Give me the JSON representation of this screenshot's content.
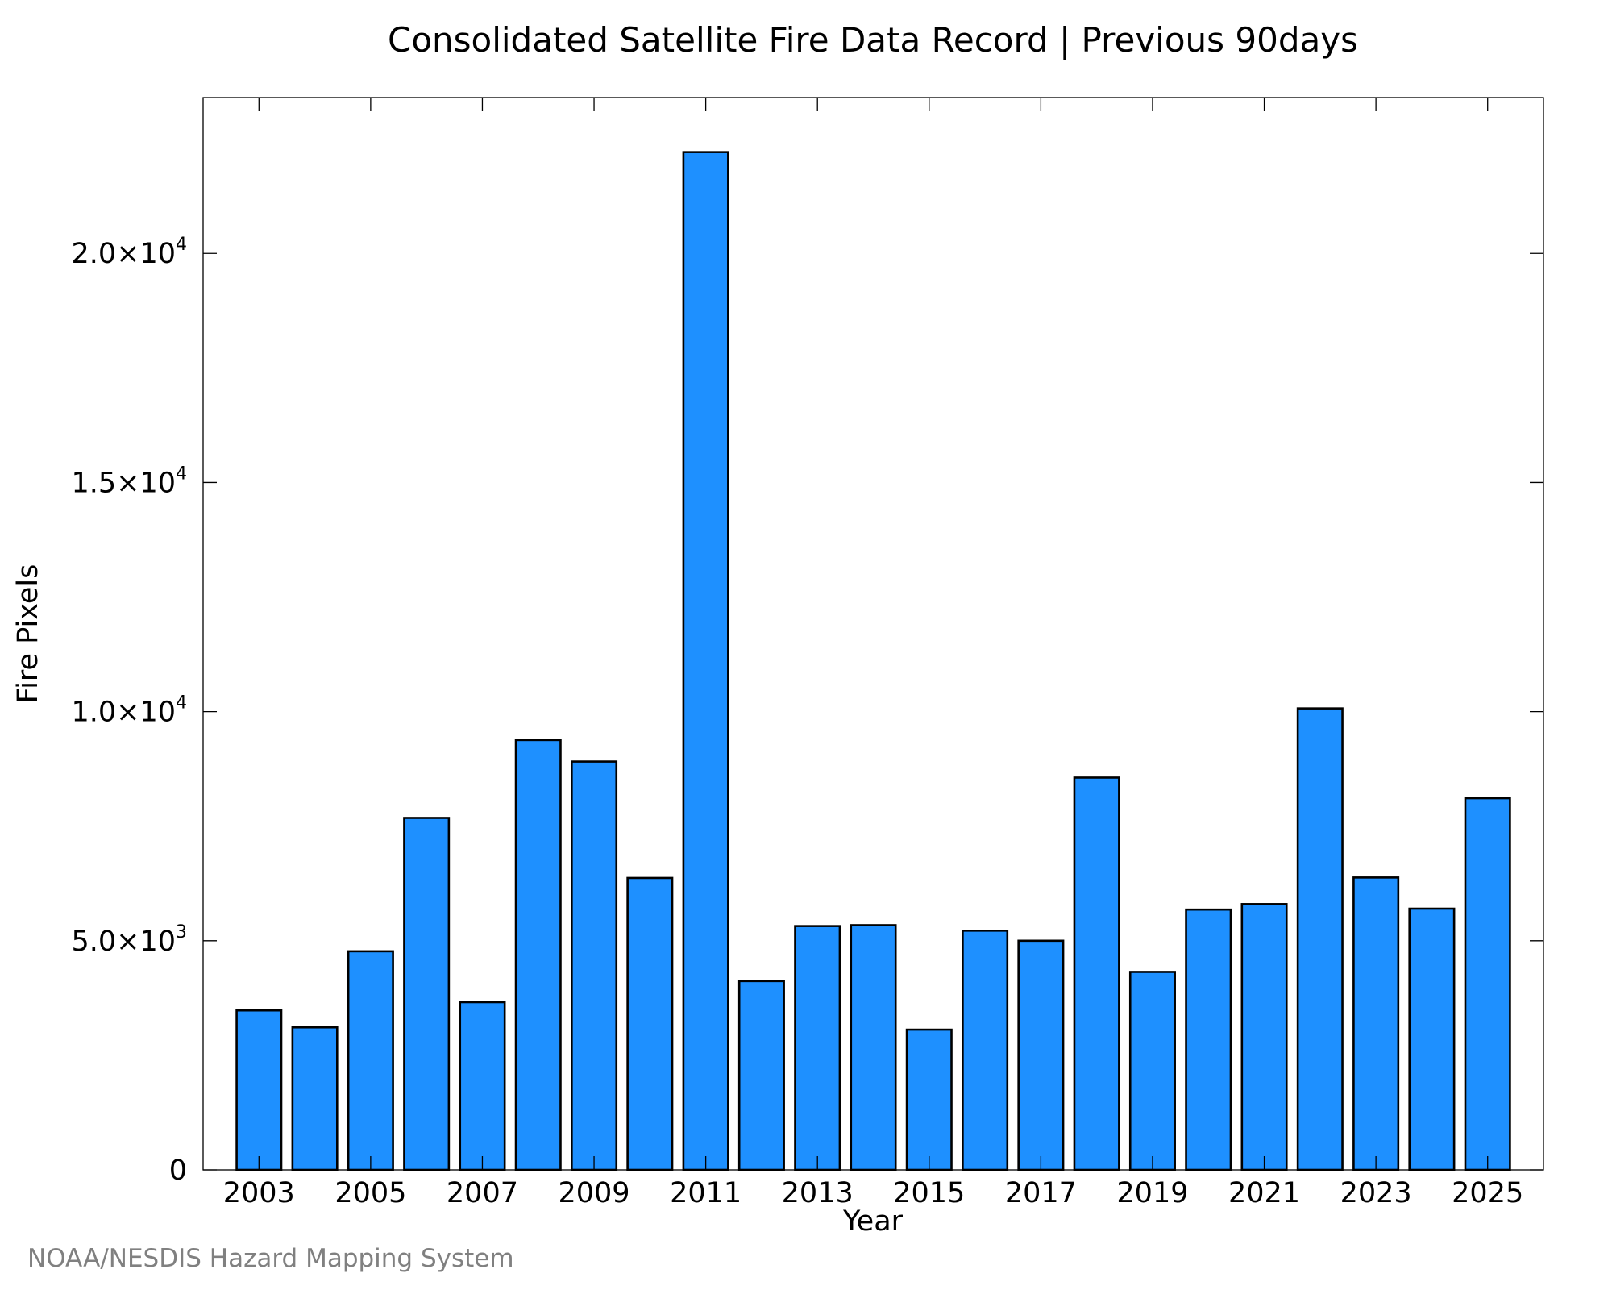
{
  "chart_data": {
    "type": "bar",
    "title": "Consolidated Satellite Fire Data Record | Previous 90days",
    "xlabel": "Year",
    "ylabel": "Fire Pixels",
    "credit": "NOAA/NESDIS Hazard Mapping System",
    "categories": [
      2003,
      2004,
      2005,
      2006,
      2007,
      2008,
      2009,
      2010,
      2011,
      2012,
      2013,
      2014,
      2015,
      2016,
      2017,
      2018,
      2019,
      2020,
      2021,
      2022,
      2023,
      2024,
      2025
    ],
    "values": [
      3480,
      3110,
      4770,
      7680,
      3660,
      9380,
      8910,
      6370,
      22210,
      4120,
      5320,
      5340,
      3060,
      5220,
      5000,
      8560,
      4320,
      5680,
      5800,
      10070,
      6380,
      5700,
      8110
    ],
    "xlim": [
      2002,
      2026
    ],
    "ylim": [
      0,
      23400
    ],
    "x_ticks": [
      2003,
      2005,
      2007,
      2009,
      2011,
      2013,
      2015,
      2017,
      2019,
      2021,
      2023,
      2025
    ],
    "x_tick_labels": [
      "2003",
      "2005",
      "2007",
      "2009",
      "2011",
      "2013",
      "2015",
      "2017",
      "2019",
      "2021",
      "2023",
      "2025"
    ],
    "y_ticks": [
      {
        "value": 0,
        "mantissa": "0",
        "exponent": ""
      },
      {
        "value": 5000,
        "mantissa": "5.0×10",
        "exponent": "3"
      },
      {
        "value": 10000,
        "mantissa": "1.0×10",
        "exponent": "4"
      },
      {
        "value": 15000,
        "mantissa": "1.5×10",
        "exponent": "4"
      },
      {
        "value": 20000,
        "mantissa": "2.0×10",
        "exponent": "4"
      }
    ],
    "grid": false,
    "bar_color": "#1e90ff",
    "edge_color": "#000000"
  }
}
